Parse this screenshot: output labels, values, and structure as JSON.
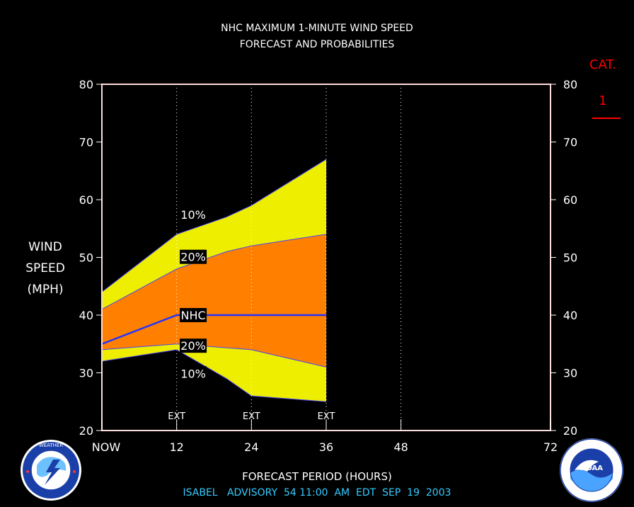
{
  "title_line1": "NHC MAXIMUM 1-MINUTE WIND SPEED",
  "title_line2": "FORECAST AND PROBABILITIES",
  "ylabel_lines": [
    "WIND",
    "SPEED",
    "(MPH)"
  ],
  "xlabel": "FORECAST PERIOD (HOURS)",
  "advisory": "ISABEL   ADVISORY  54 11:00  AM  EDT  SEP  19  2003",
  "category": {
    "title": "CAT.",
    "value": "1",
    "color": "#ff0000"
  },
  "chart_data": {
    "type": "area",
    "x_ticks": [
      0,
      12,
      24,
      36,
      48,
      72
    ],
    "x_tick_labels": [
      "NOW",
      "12",
      "24",
      "36",
      "48",
      "72"
    ],
    "xlim": [
      0,
      72
    ],
    "ylim": [
      20,
      80
    ],
    "y_ticks": [
      20,
      30,
      40,
      50,
      60,
      70,
      80
    ],
    "ext_labels": [
      {
        "x": 12,
        "text": "EXT"
      },
      {
        "x": 24,
        "text": "EXT"
      },
      {
        "x": 36,
        "text": "EXT"
      }
    ],
    "dotted_verticals": [
      12,
      24,
      36,
      48
    ],
    "colors": {
      "band_10": "#eeee00",
      "band_20": "#ff8000",
      "nhc_line": "#2233ff",
      "frame": "#ffdcdc"
    },
    "series": [
      {
        "name": "10%",
        "role": "upper_10",
        "x": [
          0,
          12,
          16,
          20,
          24,
          30,
          36
        ],
        "y": [
          44,
          54,
          55.5,
          57,
          59,
          63,
          67
        ]
      },
      {
        "name": "20%",
        "role": "upper_20",
        "x": [
          0,
          12,
          16,
          20,
          24,
          30,
          36
        ],
        "y": [
          41,
          48,
          49.5,
          51,
          52,
          53,
          54
        ]
      },
      {
        "name": "NHC",
        "role": "nhc",
        "x": [
          0,
          12,
          24,
          36
        ],
        "y": [
          35,
          40,
          40,
          40
        ]
      },
      {
        "name": "20%",
        "role": "lower_20",
        "x": [
          0,
          12,
          24,
          30,
          36
        ],
        "y": [
          34,
          35,
          34,
          32.5,
          31
        ]
      },
      {
        "name": "10%",
        "role": "lower_10",
        "x": [
          0,
          12,
          16,
          20,
          24,
          30,
          36
        ],
        "y": [
          32,
          34,
          31.5,
          29,
          26,
          25.5,
          25
        ]
      }
    ],
    "band_labels": [
      {
        "text": "10%",
        "x": 12.5,
        "y": 57.4
      },
      {
        "text": "20%",
        "x": 12.5,
        "y": 50.1
      },
      {
        "text": "NHC",
        "x": 12.5,
        "y": 40
      },
      {
        "text": "20%",
        "x": 12.5,
        "y": 34.7
      },
      {
        "text": "10%",
        "x": 12.5,
        "y": 29.9
      }
    ]
  }
}
